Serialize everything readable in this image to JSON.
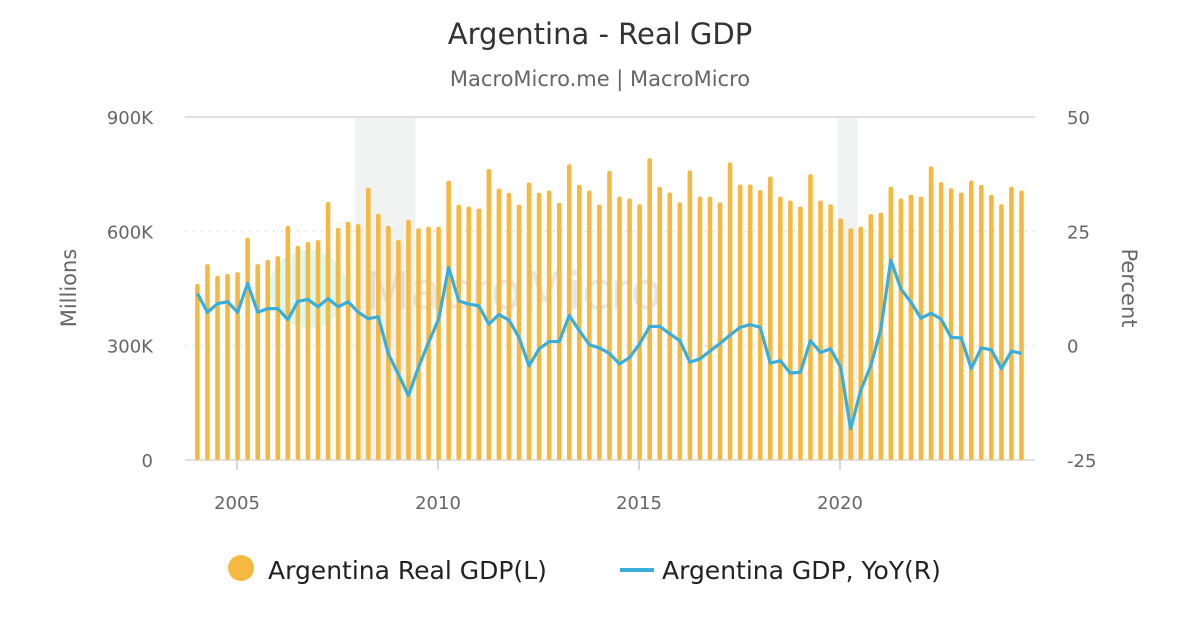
{
  "chart_data": {
    "type": "bar+line",
    "title": "Argentina - Real GDP",
    "subtitle": "MacroMicro.me | MacroMicro",
    "watermark": "MacroMicro",
    "y_left": {
      "label": "Millions",
      "range": [
        0,
        900000
      ],
      "ticks": [
        0,
        300000,
        600000,
        900000
      ],
      "tick_labels": [
        "0",
        "300K",
        "600K",
        "900K"
      ]
    },
    "y_right": {
      "label": "Percent",
      "range": [
        -25,
        50
      ],
      "ticks": [
        -25,
        0,
        25,
        50
      ],
      "tick_labels": [
        "-25",
        "0",
        "25",
        "50"
      ]
    },
    "x_axis": {
      "ticks": [
        2005,
        2010,
        2015,
        2020
      ],
      "tick_labels": [
        "2005",
        "2010",
        "2015",
        "2020"
      ]
    },
    "grid": true,
    "legend_position": "bottom",
    "recession_shading": [
      [
        "2008Q1",
        "2009Q2"
      ],
      [
        "2020Q1",
        "2020Q2"
      ]
    ],
    "categories": [
      "2004Q1",
      "2004Q2",
      "2004Q3",
      "2004Q4",
      "2005Q1",
      "2005Q2",
      "2005Q3",
      "2005Q4",
      "2006Q1",
      "2006Q2",
      "2006Q3",
      "2006Q4",
      "2007Q1",
      "2007Q2",
      "2007Q3",
      "2007Q4",
      "2008Q1",
      "2008Q2",
      "2008Q3",
      "2008Q4",
      "2009Q1",
      "2009Q2",
      "2009Q3",
      "2009Q4",
      "2010Q1",
      "2010Q2",
      "2010Q3",
      "2010Q4",
      "2011Q1",
      "2011Q2",
      "2011Q3",
      "2011Q4",
      "2012Q1",
      "2012Q2",
      "2012Q3",
      "2012Q4",
      "2013Q1",
      "2013Q2",
      "2013Q3",
      "2013Q4",
      "2014Q1",
      "2014Q2",
      "2014Q3",
      "2014Q4",
      "2015Q1",
      "2015Q2",
      "2015Q3",
      "2015Q4",
      "2016Q1",
      "2016Q2",
      "2016Q3",
      "2016Q4",
      "2017Q1",
      "2017Q2",
      "2017Q3",
      "2017Q4",
      "2018Q1",
      "2018Q2",
      "2018Q3",
      "2018Q4",
      "2019Q1",
      "2019Q2",
      "2019Q3",
      "2019Q4",
      "2020Q1",
      "2020Q2",
      "2020Q3",
      "2020Q4",
      "2021Q1",
      "2021Q2",
      "2021Q3",
      "2021Q4",
      "2022Q1",
      "2022Q2",
      "2022Q3",
      "2022Q4",
      "2023Q1",
      "2023Q2",
      "2023Q3",
      "2023Q4",
      "2024Q1",
      "2024Q2",
      "2024Q3"
    ],
    "series": [
      {
        "name": "Argentina Real GDP(L)",
        "type": "bar",
        "axis": "left",
        "color": "#f5b942",
        "values": [
          462000,
          514000,
          483000,
          488000,
          493000,
          583000,
          514000,
          525000,
          535000,
          614000,
          562000,
          572000,
          577000,
          677000,
          609000,
          625000,
          619000,
          714000,
          646000,
          614000,
          577000,
          630000,
          608000,
          612000,
          612000,
          733000,
          670000,
          665000,
          660000,
          764000,
          712000,
          701000,
          670000,
          728000,
          701000,
          707000,
          675000,
          776000,
          722000,
          707000,
          670000,
          759000,
          691000,
          686000,
          671000,
          792000,
          717000,
          702000,
          676000,
          760000,
          691000,
          691000,
          676000,
          781000,
          723000,
          723000,
          708000,
          744000,
          691000,
          681000,
          665000,
          750000,
          681000,
          671000,
          634000,
          608000,
          612000,
          645000,
          649000,
          717000,
          686000,
          696000,
          691000,
          770000,
          729000,
          713000,
          702000,
          733000,
          722000,
          696000,
          671000,
          717000,
          707000
        ]
      },
      {
        "name": "Argentina GDP, YoY(R)",
        "type": "line",
        "axis": "right",
        "color": "#3aaedb",
        "values": [
          11.4,
          7.3,
          9.2,
          9.6,
          7.3,
          13.6,
          7.3,
          8.1,
          8.1,
          5.7,
          9.7,
          10.1,
          8.5,
          10.3,
          8.5,
          9.6,
          7.3,
          5.9,
          6.3,
          -1.8,
          -6.3,
          -10.9,
          -4.7,
          0.7,
          5.8,
          17.1,
          9.8,
          9.1,
          8.7,
          4.7,
          6.8,
          5.6,
          1.8,
          -4.4,
          -0.7,
          0.9,
          0.9,
          6.6,
          3.3,
          0.2,
          -0.5,
          -1.7,
          -4.0,
          -2.6,
          0.4,
          4.2,
          4.2,
          2.6,
          1.1,
          -3.6,
          -2.9,
          -1.2,
          0.5,
          2.3,
          4.0,
          4.6,
          4.0,
          -3.8,
          -3.3,
          -6.0,
          -5.8,
          1.1,
          -1.5,
          -0.7,
          -4.7,
          -18.2,
          -9.8,
          -4.4,
          3.6,
          18.7,
          12.4,
          9.5,
          6.0,
          7.1,
          5.8,
          1.8,
          1.7,
          -5.0,
          -0.5,
          -0.9,
          -5.0,
          -1.2,
          -1.7
        ]
      }
    ]
  }
}
